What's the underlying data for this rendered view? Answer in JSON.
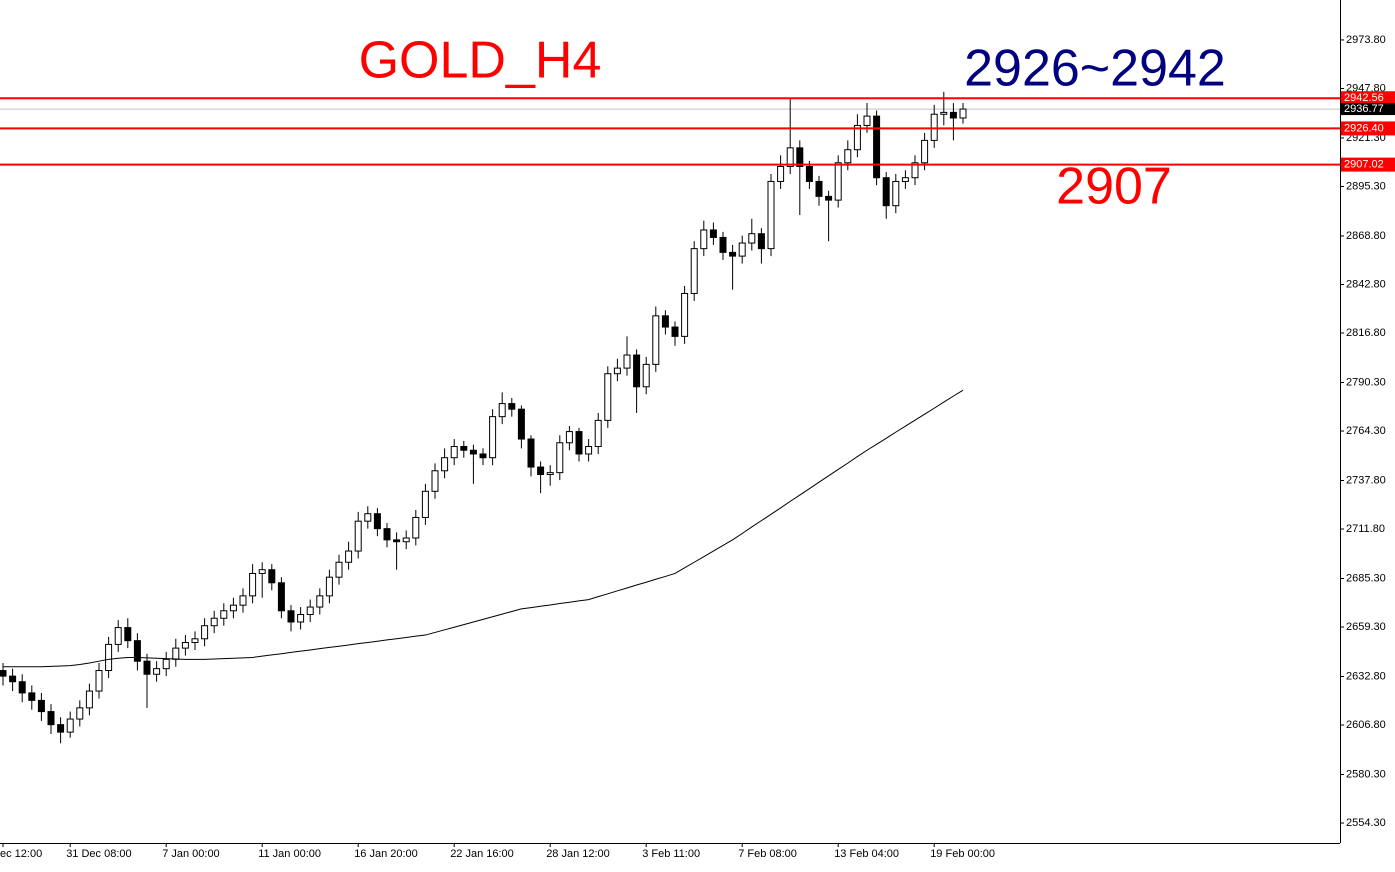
{
  "chart_data": {
    "type": "candlestick",
    "title": "GOLD_H4",
    "title_color": "#ff0000",
    "annotations": [
      {
        "text": "2926~2942",
        "color": "#000080"
      },
      {
        "text": "2907",
        "color": "#ff0000"
      }
    ],
    "categories": [
      "ec 12:00",
      null,
      null,
      null,
      null,
      null,
      null,
      "31 Dec 08:00",
      null,
      null,
      null,
      null,
      null,
      null,
      null,
      null,
      null,
      "7 Jan 00:00",
      null,
      null,
      null,
      null,
      null,
      null,
      null,
      null,
      null,
      "11 Jan 00:00",
      null,
      null,
      null,
      null,
      null,
      null,
      null,
      null,
      null,
      "16 Jan 20:00",
      null,
      null,
      null,
      null,
      null,
      null,
      null,
      null,
      null,
      "22 Jan 16:00",
      null,
      null,
      null,
      null,
      null,
      null,
      null,
      null,
      null,
      "28 Jan 12:00",
      null,
      null,
      null,
      null,
      null,
      null,
      null,
      null,
      null,
      "3 Feb 11:00",
      null,
      null,
      null,
      null,
      null,
      null,
      null,
      null,
      null,
      "7 Feb 08:00",
      null,
      null,
      null,
      null,
      null,
      null,
      null,
      null,
      null,
      "13 Feb 04:00",
      null,
      null,
      null,
      null,
      null,
      null,
      null,
      null,
      null,
      "19 Feb 00:00",
      null,
      null,
      null
    ],
    "open": [
      2636,
      2633,
      2630,
      2624,
      2620,
      2614,
      2607,
      2603,
      2610,
      2616,
      2625,
      2636,
      2650,
      2659,
      2652,
      2641,
      2634,
      2637,
      2642,
      2648,
      2651,
      2653,
      2660,
      2664,
      2668,
      2671,
      2676,
      2688,
      2690,
      2683,
      2668,
      2662,
      2666,
      2670,
      2676,
      2686,
      2694,
      2700,
      2716,
      2720,
      2712,
      2706,
      2705,
      2707,
      2718,
      2732,
      2743,
      2750,
      2756,
      2754,
      2752,
      2750,
      2772,
      2779,
      2776,
      2760,
      2745,
      2741,
      2742,
      2758,
      2764,
      2752,
      2756,
      2770,
      2795,
      2798,
      2805,
      2788,
      2800,
      2826,
      2820,
      2815,
      2838,
      2862,
      2872,
      2868,
      2860,
      2858,
      2865,
      2870,
      2862,
      2898,
      2906,
      2916,
      2906,
      2898,
      2890,
      2888,
      2908,
      2915,
      2928,
      2933,
      2900,
      2885,
      2898,
      2900,
      2908,
      2920,
      2934,
      2935,
      2932
    ],
    "high": [
      2640,
      2637,
      2634,
      2628,
      2624,
      2618,
      2611,
      2614,
      2620,
      2629,
      2640,
      2654,
      2663,
      2664,
      2656,
      2645,
      2641,
      2646,
      2653,
      2655,
      2657,
      2664,
      2668,
      2672,
      2675,
      2680,
      2693,
      2694,
      2693,
      2686,
      2671,
      2670,
      2674,
      2680,
      2690,
      2698,
      2705,
      2721,
      2724,
      2723,
      2715,
      2710,
      2711,
      2722,
      2736,
      2747,
      2755,
      2760,
      2759,
      2757,
      2755,
      2776,
      2785,
      2782,
      2778,
      2762,
      2748,
      2746,
      2762,
      2767,
      2766,
      2760,
      2774,
      2799,
      2803,
      2815,
      2808,
      2804,
      2831,
      2829,
      2823,
      2842,
      2866,
      2877,
      2876,
      2871,
      2864,
      2869,
      2878,
      2873,
      2902,
      2912,
      2942.56,
      2920,
      2909,
      2901,
      2893,
      2912,
      2920,
      2934,
      2940,
      2936,
      2903,
      2902,
      2904,
      2912,
      2924,
      2939,
      2946,
      2940,
      2940
    ],
    "low": [
      2628,
      2625,
      2619,
      2615,
      2609,
      2602,
      2597,
      2600,
      2606,
      2612,
      2621,
      2632,
      2646,
      2648,
      2636,
      2616,
      2630,
      2633,
      2638,
      2644,
      2647,
      2649,
      2656,
      2660,
      2664,
      2667,
      2672,
      2675,
      2679,
      2664,
      2657,
      2658,
      2662,
      2666,
      2672,
      2682,
      2690,
      2696,
      2712,
      2708,
      2702,
      2690,
      2701,
      2703,
      2714,
      2728,
      2739,
      2746,
      2750,
      2736,
      2746,
      2746,
      2768,
      2772,
      2755,
      2740,
      2731,
      2735,
      2738,
      2754,
      2748,
      2748,
      2752,
      2766,
      2791,
      2794,
      2774,
      2784,
      2796,
      2816,
      2810,
      2811,
      2834,
      2858,
      2864,
      2856,
      2840,
      2854,
      2861,
      2854,
      2858,
      2894,
      2902,
      2880,
      2894,
      2885,
      2866,
      2884,
      2904,
      2911,
      2924,
      2896,
      2878,
      2881,
      2894,
      2896,
      2904,
      2916,
      2928,
      2920,
      2929
    ],
    "close": [
      2633,
      2630,
      2624,
      2620,
      2614,
      2607,
      2603,
      2610,
      2616,
      2625,
      2636,
      2650,
      2659,
      2652,
      2641,
      2634,
      2637,
      2642,
      2648,
      2651,
      2653,
      2660,
      2664,
      2668,
      2671,
      2676,
      2688,
      2690,
      2683,
      2668,
      2662,
      2666,
      2670,
      2676,
      2686,
      2694,
      2700,
      2716,
      2720,
      2712,
      2706,
      2705,
      2707,
      2718,
      2732,
      2743,
      2750,
      2756,
      2754,
      2752,
      2750,
      2772,
      2779,
      2776,
      2760,
      2745,
      2741,
      2742,
      2758,
      2764,
      2752,
      2756,
      2770,
      2795,
      2798,
      2805,
      2788,
      2800,
      2826,
      2820,
      2815,
      2838,
      2862,
      2872,
      2868,
      2860,
      2858,
      2865,
      2870,
      2862,
      2898,
      2906,
      2916,
      2906,
      2898,
      2890,
      2888,
      2908,
      2915,
      2928,
      2933,
      2900,
      2885,
      2898,
      2900,
      2908,
      2920,
      2934,
      2935,
      2932,
      2936.77
    ],
    "color": "#000000",
    "ma": {
      "color": "#000000",
      "values": [
        2638,
        2638,
        2638,
        2638,
        2638,
        2638.2,
        2638.4,
        2638.6,
        2639.2,
        2640,
        2641,
        2642,
        2642.6,
        2643,
        2643,
        2642.8,
        2642.6,
        2642.4,
        2642.2,
        2642,
        2642,
        2642,
        2642.2,
        2642.4,
        2642.6,
        2642.8,
        2643,
        2643.7,
        2644.4,
        2645,
        2645.7,
        2646.4,
        2647,
        2647.7,
        2648.4,
        2649,
        2649.7,
        2650.4,
        2651,
        2651.7,
        2652.4,
        2653,
        2653.7,
        2654.4,
        2655,
        2656.4,
        2657.8,
        2659.2,
        2660.6,
        2662,
        2663.4,
        2664.8,
        2666.2,
        2667.6,
        2669,
        2669.7,
        2670.4,
        2671.1,
        2671.9,
        2672.6,
        2673.3,
        2674,
        2675.6,
        2677.1,
        2678.7,
        2680.2,
        2681.8,
        2683.3,
        2684.9,
        2686.4,
        2688,
        2691,
        2694,
        2697,
        2700,
        2703,
        2706,
        2709.4,
        2712.9,
        2716.3,
        2719.7,
        2723.1,
        2726.6,
        2730,
        2733.4,
        2736.9,
        2740.3,
        2743.7,
        2747.1,
        2750.6,
        2754,
        2757.2,
        2760.4,
        2763.7,
        2766.9,
        2770.1,
        2773.3,
        2776.5,
        2779.8,
        2783,
        2786.2
      ]
    },
    "hlines": [
      {
        "value": 2942.56,
        "label": "2942.56",
        "color": "#ff0000"
      },
      {
        "value": 2926.4,
        "label": "2926.40",
        "color": "#ff0000"
      },
      {
        "value": 2907.02,
        "label": "2907.02",
        "color": "#ff0000"
      }
    ],
    "current_price": {
      "value": 2936.77,
      "label": "2936.77",
      "color": "#000000"
    },
    "ylim": [
      2543.6,
      2995.2
    ],
    "yticks": [
      {
        "value": 2973.8,
        "label": "2973.80"
      },
      {
        "value": 2947.8,
        "label": "2947.80"
      },
      {
        "value": 2921.3,
        "label": "2921.30"
      },
      {
        "value": 2895.3,
        "label": "2895.30"
      },
      {
        "value": 2868.8,
        "label": "2868.80"
      },
      {
        "value": 2842.8,
        "label": "2842.80"
      },
      {
        "value": 2816.8,
        "label": "2816.80"
      },
      {
        "value": 2790.3,
        "label": "2790.30"
      },
      {
        "value": 2764.3,
        "label": "2764.30"
      },
      {
        "value": 2737.8,
        "label": "2737.80"
      },
      {
        "value": 2711.8,
        "label": "2711.80"
      },
      {
        "value": 2685.3,
        "label": "2685.30"
      },
      {
        "value": 2659.3,
        "label": "2659.30"
      },
      {
        "value": 2632.8,
        "label": "2632.80"
      },
      {
        "value": 2606.8,
        "label": "2606.80"
      },
      {
        "value": 2580.3,
        "label": "2580.30"
      },
      {
        "value": 2554.3,
        "label": "2554.30"
      }
    ]
  }
}
